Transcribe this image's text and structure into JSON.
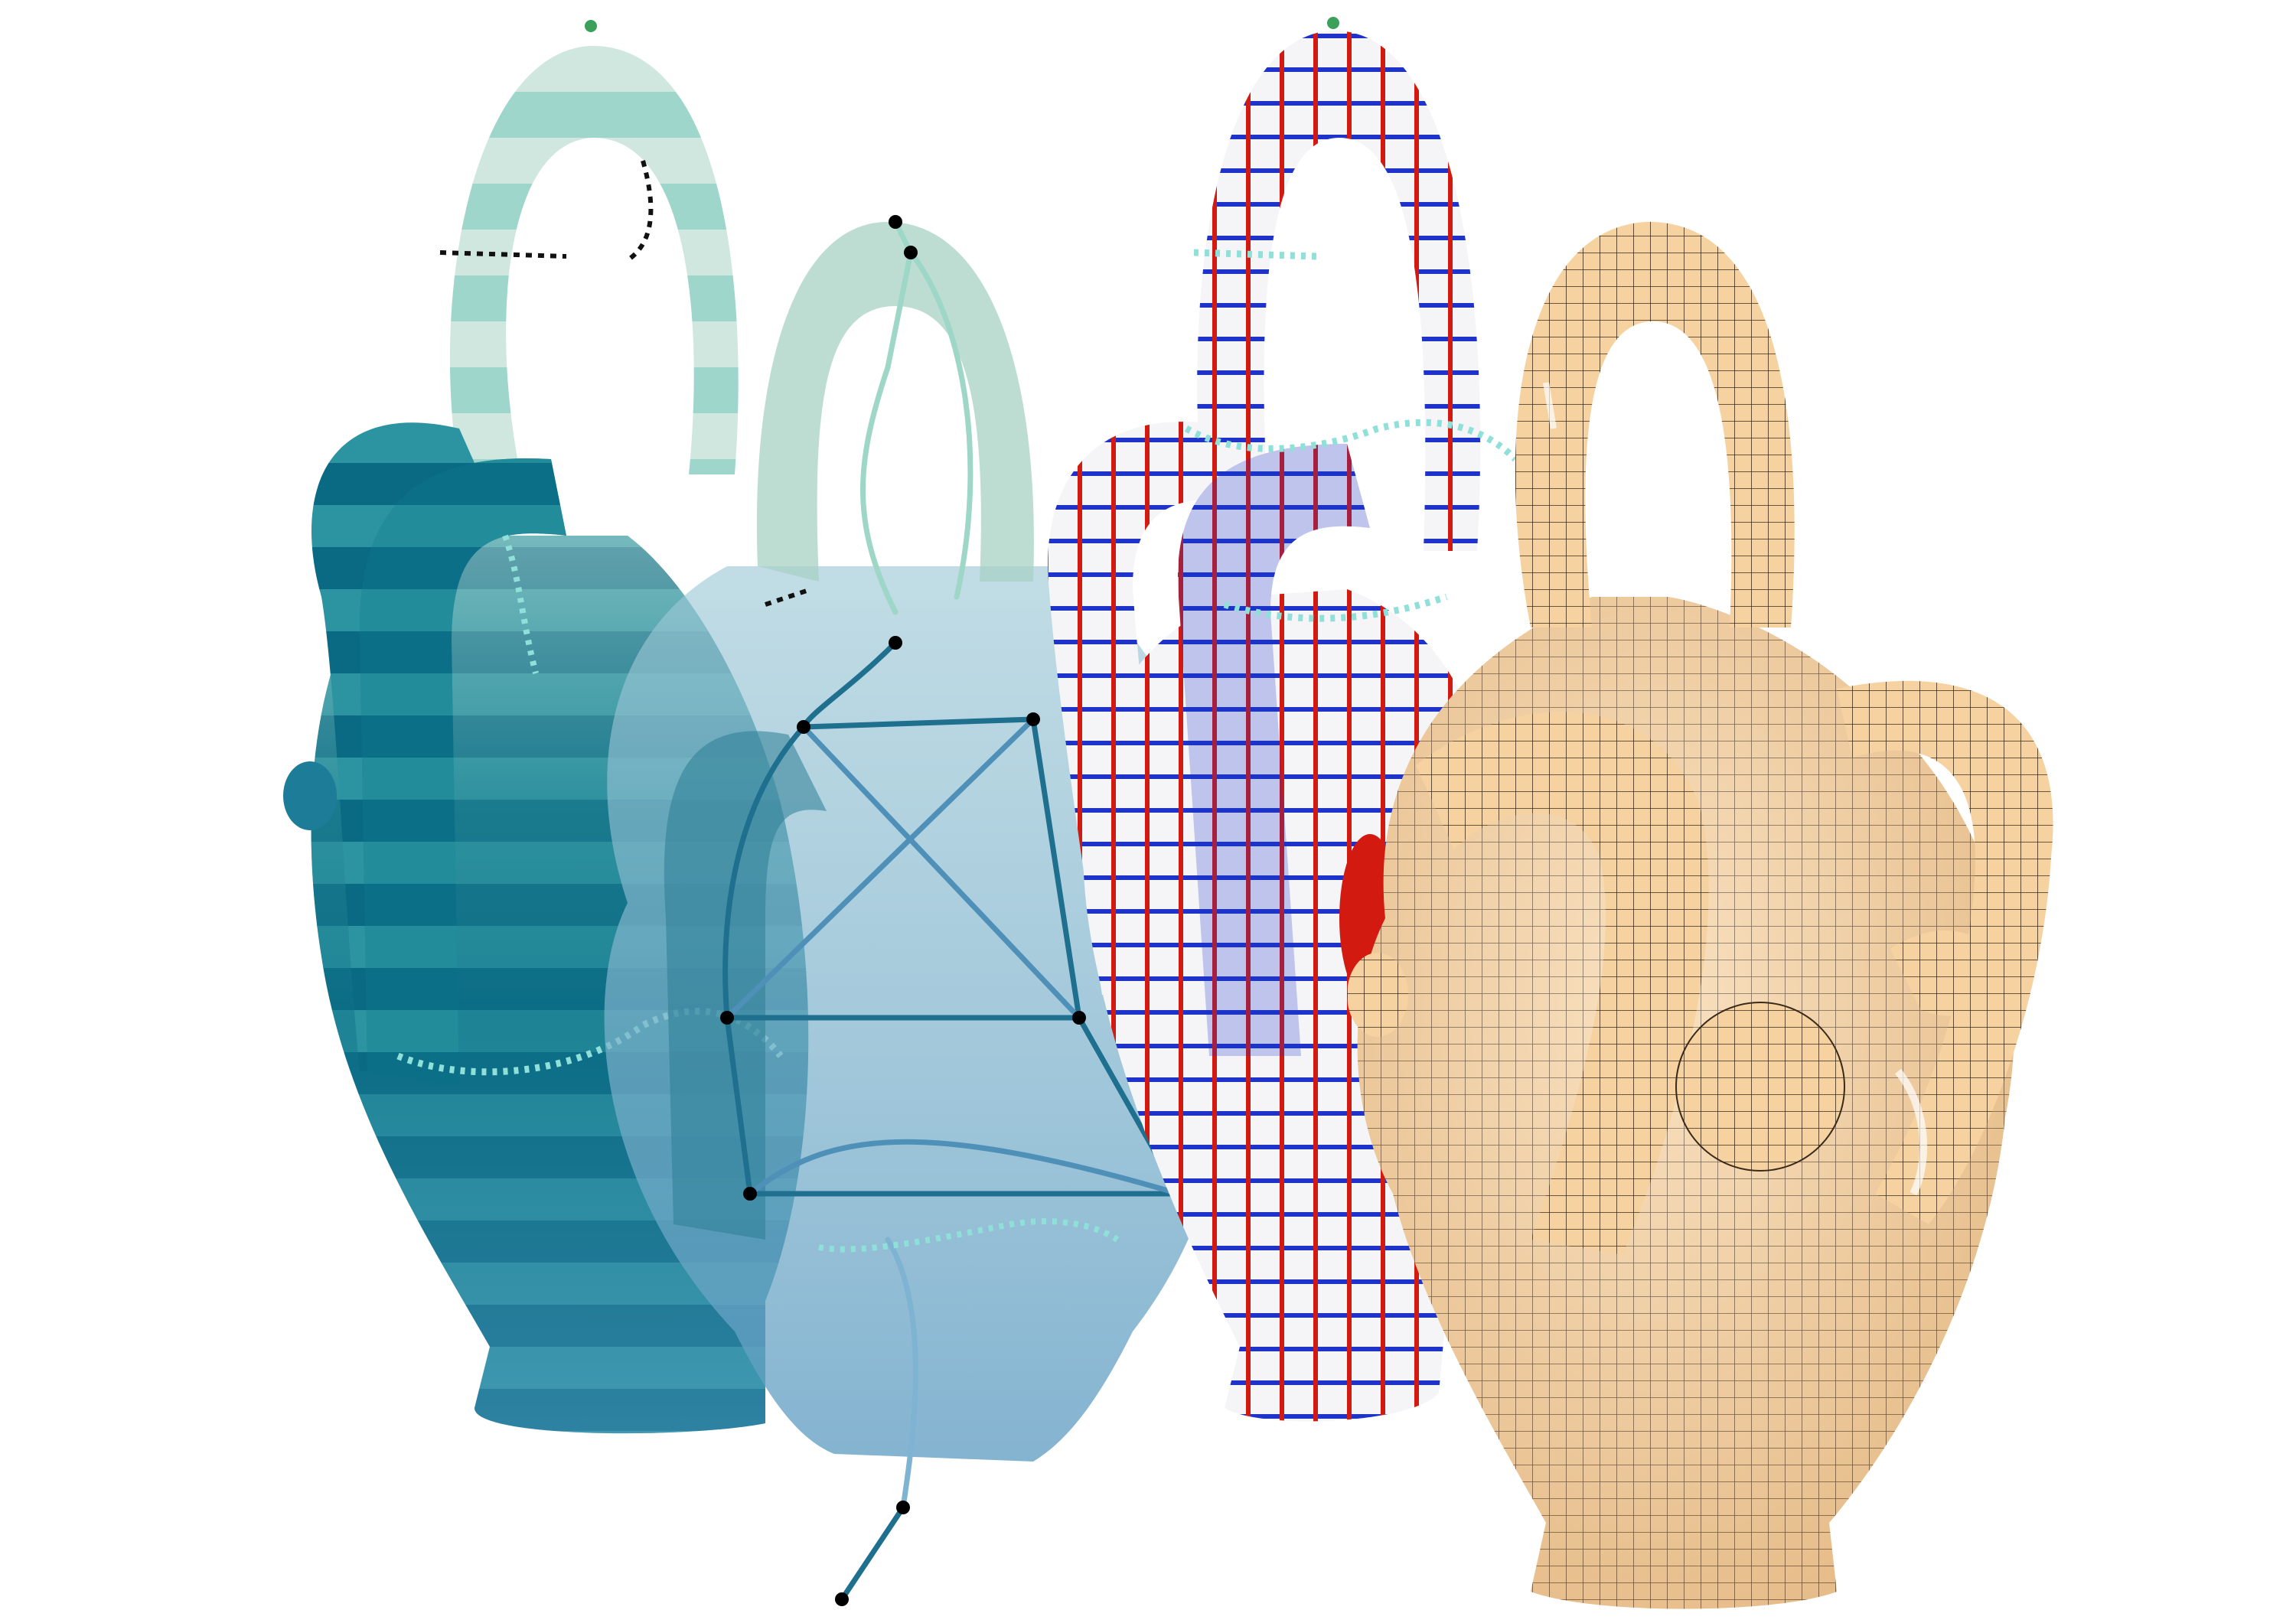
{
  "figure": {
    "stages": [
      {
        "id": "segmentation",
        "palette": [
          "#2f8f9a",
          "#0b6f86",
          "#8fd0cf",
          "#cfe7df",
          "#0f5f7a"
        ]
      },
      {
        "id": "skeleton",
        "palette": [
          "#4e90b8",
          "#7fb3d2",
          "#1f6f8f",
          "#9ed7c8"
        ]
      },
      {
        "id": "cross-field",
        "palette": [
          "#ffffff",
          "#d21a10",
          "#1d33c9"
        ]
      },
      {
        "id": "quad-mesh",
        "palette": [
          "#f6d2a0",
          "#e7b47a",
          "#111111"
        ]
      }
    ],
    "colors": {
      "background": "#ffffff",
      "seam_dots": "#8fe0d8",
      "seam_dark": "#111111"
    }
  }
}
